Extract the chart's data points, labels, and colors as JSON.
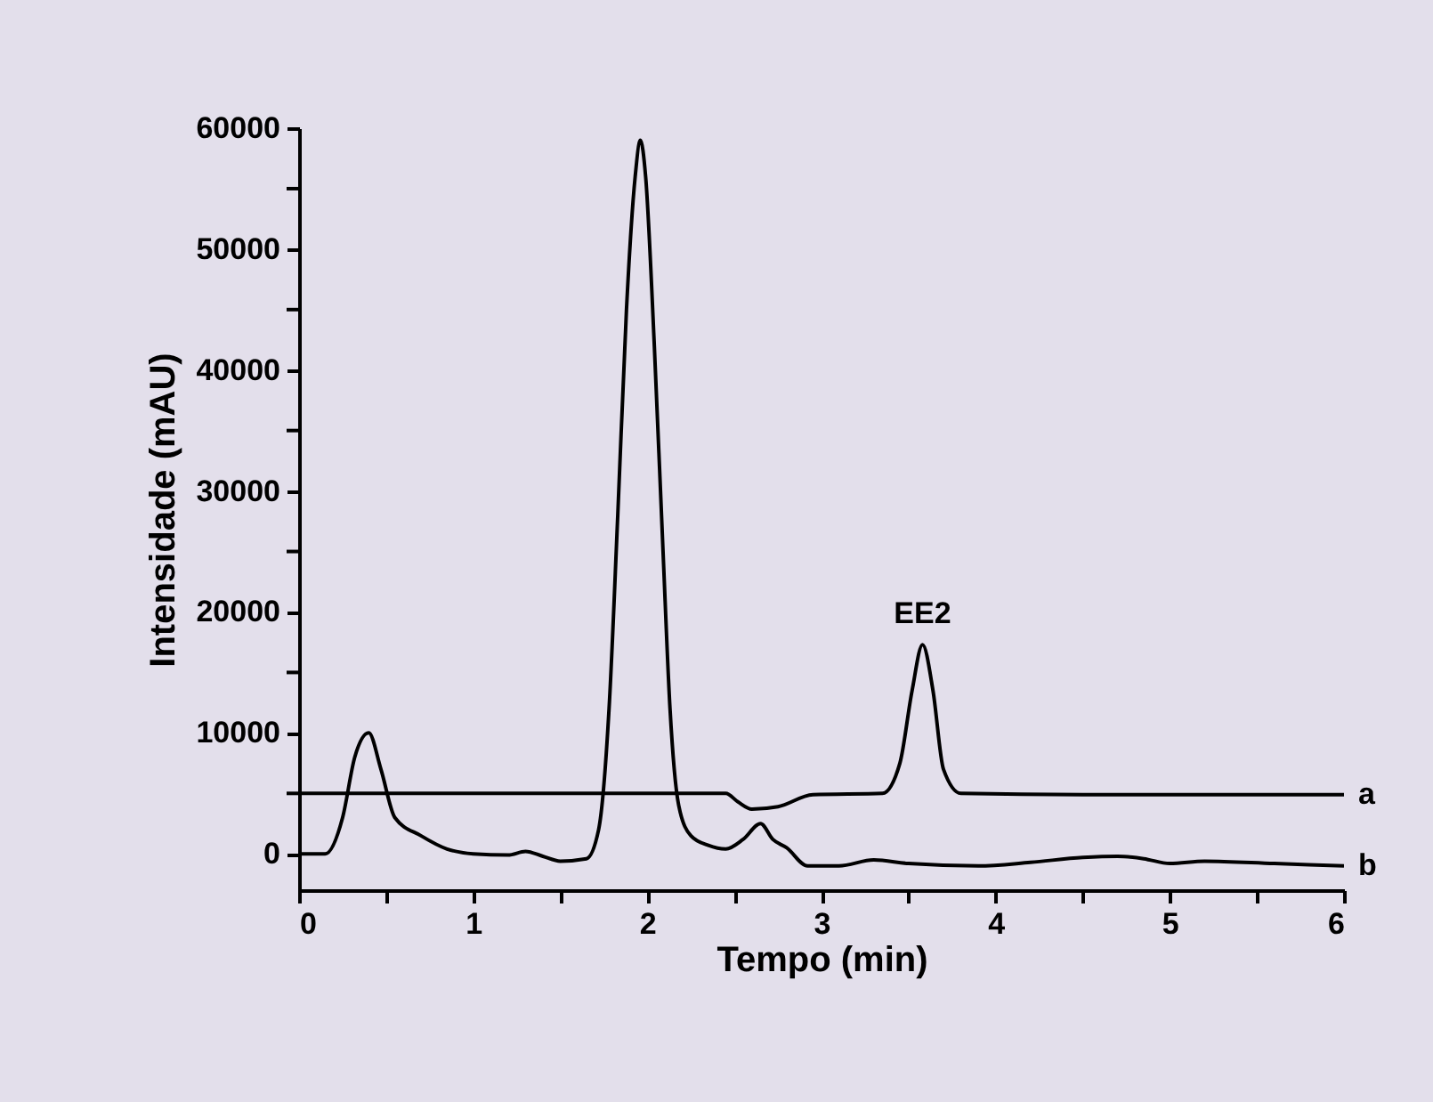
{
  "chart_data": {
    "type": "line",
    "xlabel": "Tempo (min)",
    "ylabel": "Intensidade (mAU)",
    "xlim": [
      0,
      6
    ],
    "ylim": [
      -3000,
      60000
    ],
    "xticks": [
      0,
      {
        "value": 0.5,
        "label": null
      },
      1,
      {
        "value": 1.5,
        "label": null
      },
      2,
      {
        "value": 2.5,
        "label": null
      },
      3,
      {
        "value": 3.5,
        "label": null
      },
      4,
      {
        "value": 4.5,
        "label": null
      },
      5,
      {
        "value": 5.5,
        "label": null
      },
      6
    ],
    "yticks": [
      0,
      {
        "value": 5000,
        "label": null
      },
      10000,
      {
        "value": 15000,
        "label": null
      },
      20000,
      {
        "value": 25000,
        "label": null
      },
      30000,
      {
        "value": 35000,
        "label": null
      },
      40000,
      {
        "value": 45000,
        "label": null
      },
      50000,
      {
        "value": 55000,
        "label": null
      },
      60000
    ],
    "grid": false,
    "marker": "none",
    "line_style": "solid",
    "annotations": [
      {
        "text": "EE2",
        "x": 3.58,
        "y": 17300
      }
    ],
    "series": [
      {
        "name": "a",
        "color": "#000000",
        "x": [
          0,
          0.5,
          1.0,
          1.5,
          2.0,
          2.45,
          2.52,
          2.6,
          2.75,
          2.95,
          3.35,
          3.45,
          3.52,
          3.58,
          3.64,
          3.7,
          3.8,
          4.5,
          5.0,
          6.0
        ],
        "values": [
          5000,
          5000,
          5000,
          5000,
          5000,
          5000,
          4300,
          3700,
          3900,
          4900,
          5000,
          7500,
          13500,
          17300,
          13500,
          7000,
          5000,
          4900,
          4900,
          4900
        ]
      },
      {
        "name": "b",
        "color": "#000000",
        "x": [
          0,
          0.15,
          0.25,
          0.32,
          0.4,
          0.47,
          0.55,
          0.7,
          0.85,
          1.0,
          1.2,
          1.3,
          1.4,
          1.5,
          1.65,
          1.72,
          1.78,
          1.83,
          1.88,
          1.93,
          1.96,
          1.99,
          2.04,
          2.09,
          2.13,
          2.18,
          2.25,
          2.35,
          2.45,
          2.55,
          2.65,
          2.72,
          2.8,
          2.92,
          3.1,
          3.3,
          3.5,
          3.9,
          4.2,
          4.5,
          4.7,
          4.85,
          5.0,
          5.2,
          5.6,
          6.0
        ],
        "values": [
          0,
          0,
          3000,
          8000,
          10000,
          7000,
          3000,
          1500,
          400,
          0,
          -100,
          200,
          -200,
          -600,
          -400,
          2000,
          12000,
          28000,
          45000,
          56000,
          59000,
          56000,
          42000,
          25000,
          12000,
          4000,
          1500,
          700,
          400,
          1200,
          2500,
          1200,
          500,
          -1000,
          -1000,
          -500,
          -800,
          -1000,
          -700,
          -300,
          -200,
          -400,
          -800,
          -600,
          -800,
          -1000
        ]
      }
    ]
  }
}
